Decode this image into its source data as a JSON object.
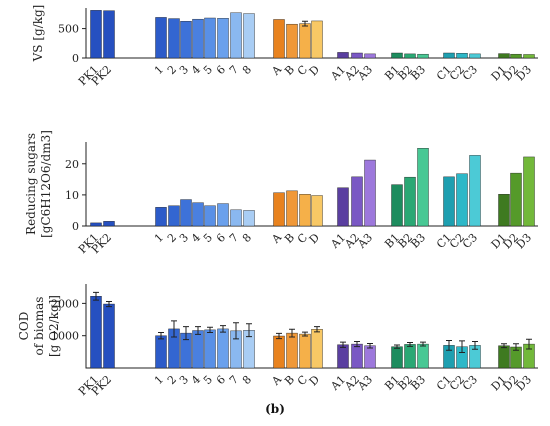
{
  "caption": "(b)",
  "colors": {
    "PK": "#2650c0",
    "numbers": [
      "#2c5bc9",
      "#3366d1",
      "#3d72d9",
      "#4a80e0",
      "#5990e6",
      "#6aa0ec",
      "#8ab8f0",
      "#a9cdf4"
    ],
    "A": "#e8821e",
    "B": "#f09838",
    "C": "#f5b049",
    "D": "#f8c865",
    "A_group": [
      "#5a3fa0",
      "#7a58c4",
      "#9d78dc"
    ],
    "B_group": [
      "#1d8c5e",
      "#2aa874",
      "#48c894"
    ],
    "C_group": [
      "#1e9fb0",
      "#2db8c8",
      "#4ccad6"
    ],
    "D_group": [
      "#3e7a20",
      "#559a2a",
      "#72b83a"
    ]
  },
  "chart_data": [
    {
      "type": "bar",
      "ylabel_lines": [
        "VS [g/kg]"
      ],
      "ylim": [
        0,
        850
      ],
      "yticks": [
        0,
        500
      ],
      "categories": [
        "PK1",
        "PK2",
        "1",
        "2",
        "3",
        "4",
        "5",
        "6",
        "7",
        "8",
        "A",
        "B",
        "C",
        "D",
        "A1",
        "A2",
        "A3",
        "B1",
        "B2",
        "B3",
        "C1",
        "C2",
        "C3",
        "D1",
        "D2",
        "D3"
      ],
      "values": [
        810,
        805,
        690,
        670,
        625,
        660,
        680,
        675,
        770,
        755,
        655,
        575,
        585,
        630,
        95,
        85,
        70,
        85,
        70,
        65,
        85,
        80,
        70,
        75,
        65,
        60
      ],
      "errors": [
        0,
        0,
        0,
        0,
        0,
        0,
        0,
        0,
        0,
        0,
        0,
        0,
        40,
        0,
        0,
        0,
        0,
        0,
        0,
        0,
        0,
        0,
        0,
        0,
        0,
        0
      ]
    },
    {
      "type": "bar",
      "ylabel_lines": [
        "Reducing sugars",
        "[gC6H12O6/dm3]"
      ],
      "ylim": [
        0,
        27
      ],
      "yticks": [
        0,
        10,
        20
      ],
      "categories": [
        "PK1",
        "PK2",
        "1",
        "2",
        "3",
        "4",
        "5",
        "6",
        "7",
        "8",
        "A",
        "B",
        "C",
        "D",
        "A1",
        "A2",
        "A3",
        "B1",
        "B2",
        "B3",
        "C1",
        "C2",
        "C3",
        "D1",
        "D2",
        "D3"
      ],
      "values": [
        1.0,
        1.5,
        6.0,
        6.5,
        8.5,
        7.5,
        6.5,
        7.2,
        5.2,
        5.0,
        10.7,
        11.3,
        10.2,
        9.8,
        12.3,
        15.8,
        21.2,
        13.3,
        15.7,
        25.0,
        15.8,
        16.8,
        22.7,
        10.2,
        17.0,
        22.2
      ],
      "errors": [
        0,
        0,
        0,
        0,
        0,
        0,
        0,
        0,
        0,
        0,
        0,
        0,
        0,
        0,
        0,
        0,
        0,
        0,
        0,
        0,
        0,
        0,
        0,
        0,
        0,
        0
      ]
    },
    {
      "type": "bar",
      "ylabel_lines": [
        "COD",
        "of biomas",
        "[g O2/kg]]"
      ],
      "ylim": [
        0,
        2600
      ],
      "yticks": [
        1000,
        2000
      ],
      "categories": [
        "PK1",
        "PK2",
        "1",
        "2",
        "3",
        "4",
        "5",
        "6",
        "7",
        "8",
        "A",
        "B",
        "C",
        "D",
        "A1",
        "A2",
        "A3",
        "B1",
        "B2",
        "B3",
        "C1",
        "C2",
        "C3",
        "D1",
        "D2",
        "D3"
      ],
      "values": [
        2220,
        1980,
        1000,
        1210,
        1080,
        1160,
        1180,
        1210,
        1150,
        1170,
        990,
        1080,
        1050,
        1200,
        720,
        740,
        690,
        660,
        730,
        740,
        700,
        660,
        700,
        690,
        650,
        740
      ],
      "errors": [
        120,
        80,
        100,
        250,
        200,
        120,
        80,
        100,
        250,
        200,
        80,
        120,
        60,
        80,
        80,
        80,
        70,
        50,
        60,
        60,
        150,
        180,
        120,
        60,
        100,
        150
      ]
    }
  ]
}
